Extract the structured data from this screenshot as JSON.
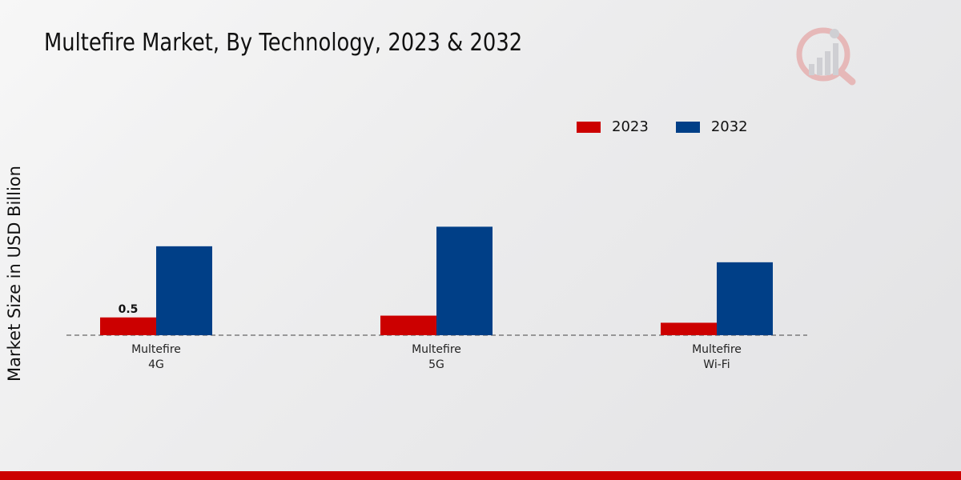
{
  "title": "Multefire Market, By Technology, 2023 & 2032",
  "colors": {
    "series_2023": "#cc0000",
    "series_2032": "#003f87",
    "footer": "#cc0000"
  },
  "chart_data": {
    "type": "bar",
    "title": "Multefire Market, By Technology, 2023 & 2032",
    "xlabel": "",
    "ylabel": "Market Size in USD Billion",
    "categories": [
      [
        "Multefire",
        "4G"
      ],
      [
        "Multefire",
        "5G"
      ],
      [
        "Multefire",
        "Wi-Fi"
      ]
    ],
    "series": [
      {
        "name": "2023",
        "values": [
          0.5,
          0.55,
          0.35
        ],
        "color": "#cc0000"
      },
      {
        "name": "2032",
        "values": [
          2.5,
          3.05,
          2.05
        ],
        "color": "#003f87"
      }
    ],
    "data_labels": [
      {
        "series": 0,
        "index": 0,
        "text": "0.5"
      }
    ],
    "ylim": [
      0,
      6.5
    ],
    "legend_position": "top-right",
    "grid": false
  },
  "legend": {
    "items": [
      {
        "label": "2023",
        "color": "#cc0000"
      },
      {
        "label": "2032",
        "color": "#003f87"
      }
    ]
  }
}
